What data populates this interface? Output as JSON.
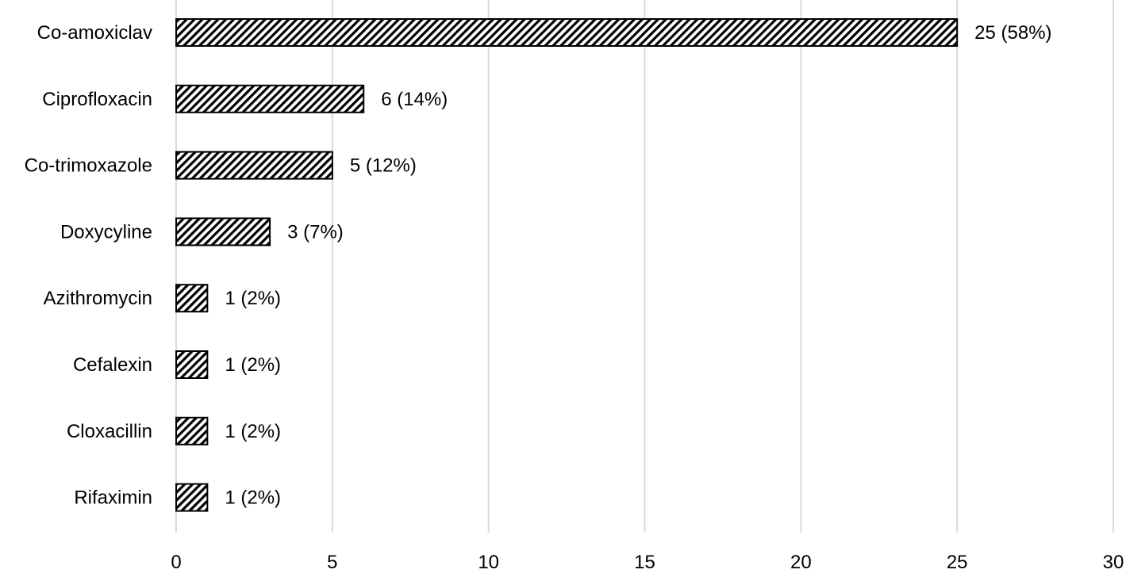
{
  "chart_data": {
    "type": "bar",
    "orientation": "horizontal",
    "categories": [
      "Co-amoxiclav",
      "Ciprofloxacin",
      "Co-trimoxazole",
      "Doxycyline",
      "Azithromycin",
      "Cefalexin",
      "Cloxacillin",
      "Rifaximin"
    ],
    "values": [
      25,
      6,
      5,
      3,
      1,
      1,
      1,
      1
    ],
    "data_labels": [
      "25 (58%)",
      "6 (14%)",
      "5 (12%)",
      "3 (7%)",
      "1 (2%)",
      "1 (2%)",
      "1 (2%)",
      "1 (2%)"
    ],
    "xlim": [
      0,
      30
    ],
    "x_ticks": [
      0,
      5,
      10,
      15,
      20,
      25,
      30
    ],
    "x_tick_labels": [
      "0",
      "5",
      "10",
      "15",
      "20",
      "25",
      "30"
    ],
    "grid": "vertical",
    "legend": "none",
    "bar_fill": "diagonal-hatch",
    "colors": {
      "bar_stroke": "#000000",
      "hatch": "#000000",
      "grid": "#d9d9d9",
      "text": "#000000"
    }
  }
}
